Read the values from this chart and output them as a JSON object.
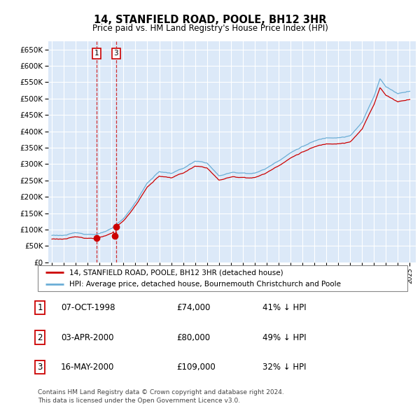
{
  "title": "14, STANFIELD ROAD, POOLE, BH12 3HR",
  "subtitle": "Price paid vs. HM Land Registry's House Price Index (HPI)",
  "ylim": [
    0,
    675000
  ],
  "yticks": [
    0,
    50000,
    100000,
    150000,
    200000,
    250000,
    300000,
    350000,
    400000,
    450000,
    500000,
    550000,
    600000,
    650000
  ],
  "plot_bg": "#dce9f8",
  "grid_color": "#ffffff",
  "hpi_color": "#6baed6",
  "price_color": "#cc0000",
  "t1": 1998.77,
  "p1": 74000,
  "t2": 2000.25,
  "p2": 80000,
  "t3": 2000.37,
  "p3": 109000,
  "legend_entry1": "14, STANFIELD ROAD, POOLE, BH12 3HR (detached house)",
  "legend_entry2": "HPI: Average price, detached house, Bournemouth Christchurch and Poole",
  "table_rows": [
    [
      "1",
      "07-OCT-1998",
      "£74,000",
      "41% ↓ HPI"
    ],
    [
      "2",
      "03-APR-2000",
      "£80,000",
      "49% ↓ HPI"
    ],
    [
      "3",
      "16-MAY-2000",
      "£109,000",
      "32% ↓ HPI"
    ]
  ],
  "footnote1": "Contains HM Land Registry data © Crown copyright and database right 2024.",
  "footnote2": "This data is licensed under the Open Government Licence v3.0."
}
